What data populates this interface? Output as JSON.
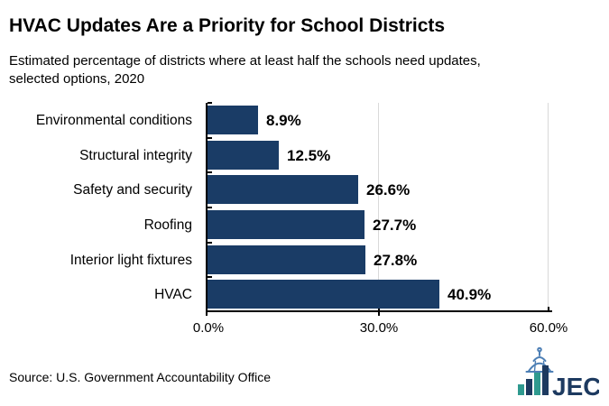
{
  "chart_data": {
    "type": "bar",
    "orientation": "horizontal",
    "title": "HVAC Updates Are a Priority for School Districts",
    "subtitle_lines": [
      "Estimated percentage of districts where at least half the schools need updates,",
      "selected options, 2020"
    ],
    "categories": [
      "Environmental conditions",
      "Structural integrity",
      "Safety and security",
      "Roofing",
      "Interior light fixtures",
      "HVAC"
    ],
    "values": [
      8.9,
      12.5,
      26.6,
      27.7,
      27.8,
      40.9
    ],
    "value_labels": [
      "8.9%",
      "12.5%",
      "26.6%",
      "27.7%",
      "27.8%",
      "40.9%"
    ],
    "xlabel": "",
    "ylabel": "",
    "xlim": [
      0,
      60
    ],
    "x_ticks": [
      {
        "value": 0,
        "label": "0.0%"
      },
      {
        "value": 30,
        "label": "30.0%"
      },
      {
        "value": 60,
        "label": "60.0%"
      }
    ],
    "grid": "vertical gridlines at 30% and 60%",
    "legend": "none",
    "bar_color": "#1a3c66",
    "gridline_color": "#d9d9d9"
  },
  "footer": {
    "source": "Source: U.S. Government Accountability Office",
    "logo": {
      "text": "JEC",
      "navy": "#1d3a60",
      "teal": "#2f9a8f",
      "dome_blue": "#4d7fb5"
    }
  }
}
